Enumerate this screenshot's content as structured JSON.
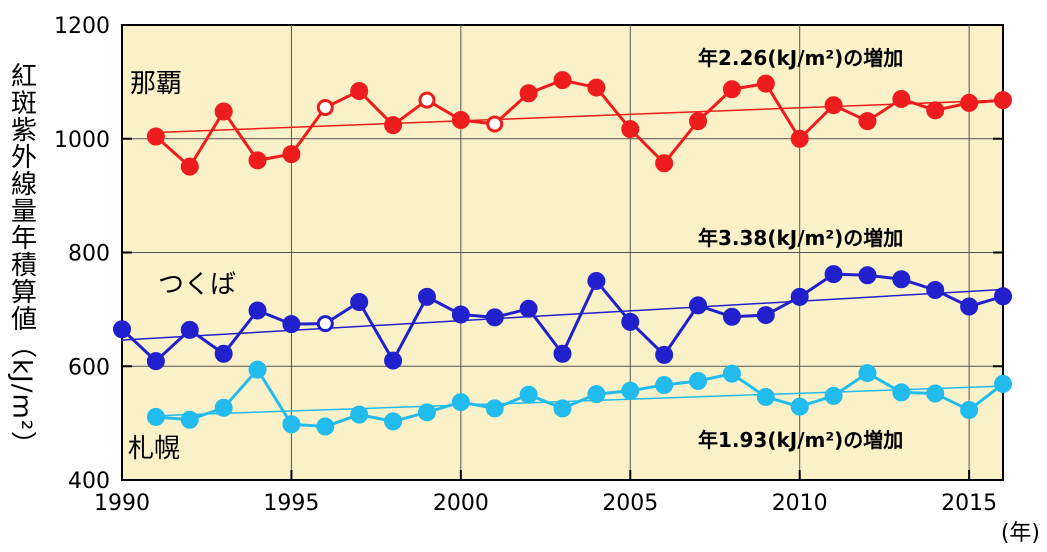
{
  "chart_data": {
    "type": "line",
    "ylabel": "紅斑紫外線量年積算値（kJ/m²）",
    "xunit": "(年)",
    "ylim": [
      400,
      1200
    ],
    "xlim": [
      1990,
      2016
    ],
    "yticks": [
      400,
      600,
      800,
      1000,
      1200
    ],
    "xticks": [
      1990,
      1995,
      2000,
      2005,
      2010,
      2015
    ],
    "grid": true,
    "series": [
      {
        "name": "那覇",
        "color": "#ee1c1c",
        "x": [
          1991,
          1992,
          1993,
          1994,
          1995,
          1996,
          1997,
          1998,
          1999,
          2000,
          2001,
          2002,
          2003,
          2004,
          2005,
          2006,
          2007,
          2008,
          2009,
          2010,
          2011,
          2012,
          2013,
          2014,
          2015,
          2016
        ],
        "values": [
          1004,
          951,
          1048,
          962,
          973,
          1055,
          1084,
          1024,
          1068,
          1033,
          1026,
          1080,
          1103,
          1090,
          1017,
          957,
          1031,
          1087,
          1097,
          1000,
          1059,
          1031,
          1070,
          1050,
          1063,
          1068
        ],
        "open_markers": [
          1996,
          1999,
          2001
        ],
        "trend": [
          1011,
          1068
        ],
        "trend_label": "年2.26(kJ/m²)の増加"
      },
      {
        "name": "つくば",
        "color": "#2020cc",
        "x": [
          1990,
          1991,
          1992,
          1993,
          1994,
          1995,
          1996,
          1997,
          1998,
          1999,
          2000,
          2001,
          2002,
          2003,
          2004,
          2005,
          2006,
          2007,
          2008,
          2009,
          2010,
          2011,
          2012,
          2013,
          2014,
          2015,
          2016
        ],
        "values": [
          665,
          609,
          664,
          622,
          698,
          674,
          675,
          713,
          610,
          722,
          691,
          686,
          701,
          622,
          750,
          678,
          620,
          707,
          687,
          690,
          722,
          762,
          760,
          753,
          734,
          705,
          723
        ],
        "open_markers": [
          1996
        ],
        "trend": [
          646,
          735
        ],
        "trend_label": "年3.38(kJ/m²)の増加"
      },
      {
        "name": "札幌",
        "color": "#22bbee",
        "x": [
          1991,
          1992,
          1993,
          1994,
          1995,
          1996,
          1997,
          1998,
          1999,
          2000,
          2001,
          2002,
          2003,
          2004,
          2005,
          2006,
          2007,
          2008,
          2009,
          2010,
          2011,
          2012,
          2013,
          2014,
          2015,
          2016
        ],
        "values": [
          511,
          506,
          527,
          594,
          498,
          494,
          515,
          503,
          519,
          537,
          526,
          550,
          526,
          551,
          557,
          567,
          574,
          587,
          546,
          529,
          548,
          588,
          554,
          552,
          523,
          569
        ],
        "open_markers": [],
        "trend": [
          513,
          565
        ],
        "trend_label": "年1.93(kJ/m²)の増加"
      }
    ]
  }
}
